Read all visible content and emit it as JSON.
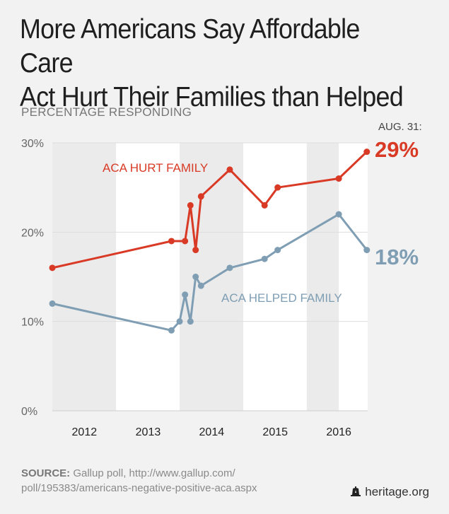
{
  "title_line1": "More Americans Say Affordable Care",
  "title_line2": "Act Hurt Their Families than Helped",
  "subtitle": "PERCENTAGE RESPONDING",
  "source_label": "SOURCE:",
  "source_line1": "Gallup poll, http://www.gallup.com/",
  "source_line2": "poll/195383/americans-negative-positive-aca.aspx",
  "brand": "heritage.org",
  "colors": {
    "hurt": "#d93a26",
    "helped": "#7f9eb4",
    "text": "#555555",
    "grid": "#dddddd"
  },
  "chart_data": {
    "type": "line",
    "x_ticks": [
      "2012",
      "2013",
      "2014",
      "2015",
      "2016"
    ],
    "y_ticks": [
      "0%",
      "10%",
      "20%",
      "30%"
    ],
    "ylim": [
      0,
      30
    ],
    "xlim": [
      "2011-07-01",
      "2016-06-15"
    ],
    "last_point_caption": "AUG. 31:",
    "series": [
      {
        "name": "ACA HURT FAMILY",
        "end_label": "29%",
        "points": [
          [
            "2011-07-01",
            16
          ],
          [
            "2013-05-15",
            19
          ],
          [
            "2013-08-01",
            19
          ],
          [
            "2013-09-01",
            23
          ],
          [
            "2013-10-01",
            18
          ],
          [
            "2013-11-01",
            24
          ],
          [
            "2014-04-15",
            27
          ],
          [
            "2014-11-01",
            23
          ],
          [
            "2015-01-15",
            25
          ],
          [
            "2016-01-01",
            26
          ],
          [
            "2016-06-10",
            29
          ]
        ]
      },
      {
        "name": "ACA HELPED FAMILY",
        "end_label": "18%",
        "points": [
          [
            "2011-07-01",
            12
          ],
          [
            "2013-05-15",
            9
          ],
          [
            "2013-07-01",
            10
          ],
          [
            "2013-08-01",
            13
          ],
          [
            "2013-09-01",
            10
          ],
          [
            "2013-10-01",
            15
          ],
          [
            "2013-11-01",
            14
          ],
          [
            "2014-04-15",
            16
          ],
          [
            "2014-11-01",
            17
          ],
          [
            "2015-01-15",
            18
          ],
          [
            "2016-01-01",
            22
          ],
          [
            "2016-06-10",
            18
          ]
        ]
      }
    ]
  }
}
